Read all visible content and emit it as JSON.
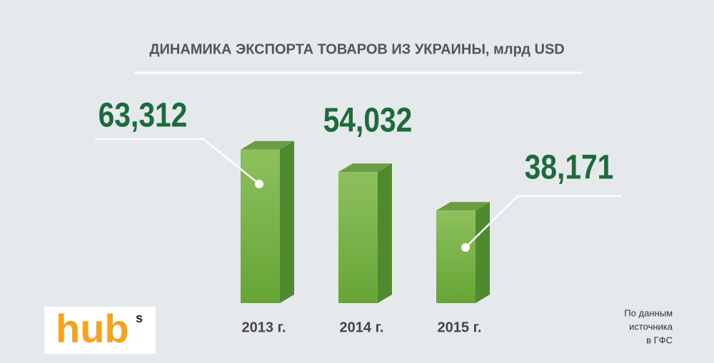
{
  "chart_data": {
    "type": "bar",
    "title": "ДИНАМИКА ЭКСПОРТА ТОВАРОВ ИЗ УКРАИНЫ, млрд USD",
    "categories": [
      "2013 г.",
      "2014 г.",
      "2015 г."
    ],
    "values": [
      63.312,
      54.032,
      38.171
    ],
    "value_labels": [
      "63,312",
      "54,032",
      "38,171"
    ],
    "color": "#7ab648",
    "label_color": "#1d6b3c",
    "source": [
      "По данным",
      "источника",
      "в ГФС"
    ],
    "logo": {
      "text": "hub",
      "superscript": "s"
    }
  }
}
